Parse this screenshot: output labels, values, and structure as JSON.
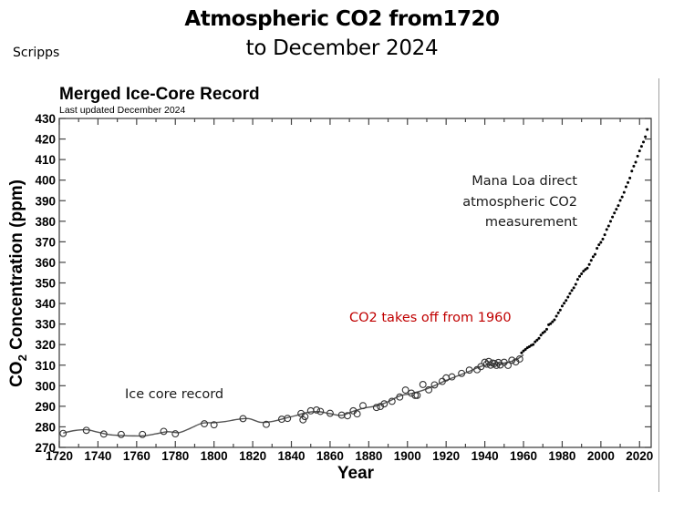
{
  "page": {
    "title_line1": "Atmospheric CO2 from1720",
    "title_line2": "to December 2024",
    "source_label": "Scripps"
  },
  "chart_data": {
    "type": "line",
    "title": "Merged Ice-Core Record",
    "subtitle": "Last updated December 2024",
    "xlabel": "Year",
    "ylabel_main": "CO",
    "ylabel_sub": "2",
    "ylabel_rest": " Concentration (ppm)",
    "xlim": [
      1720,
      2026
    ],
    "ylim": [
      270,
      430
    ],
    "x_ticks": [
      1720,
      1740,
      1760,
      1780,
      1800,
      1820,
      1840,
      1860,
      1880,
      1900,
      1920,
      1940,
      1960,
      1980,
      2000,
      2020
    ],
    "x_tick_labels": [
      "1720",
      "1740",
      "1760",
      "1780",
      "1800",
      "1820",
      "1840",
      "1860",
      "1880",
      "1900",
      "1920",
      "1940",
      "1960",
      "1980",
      "2000",
      "2020"
    ],
    "y_ticks": [
      270,
      280,
      290,
      300,
      310,
      320,
      330,
      340,
      350,
      360,
      370,
      380,
      390,
      400,
      410,
      420,
      430
    ],
    "y_tick_labels": [
      "270",
      "280",
      "290",
      "300",
      "310",
      "320",
      "330",
      "340",
      "350",
      "360",
      "370",
      "380",
      "390",
      "400",
      "410",
      "420",
      "430"
    ],
    "grid": false,
    "series": [
      {
        "name": "Ice core record (smoothed spline)",
        "style": "line",
        "x": [
          1722,
          1728,
          1734,
          1740,
          1746,
          1752,
          1758,
          1764,
          1770,
          1776,
          1782,
          1788,
          1794,
          1800,
          1806,
          1812,
          1818,
          1824,
          1830,
          1836,
          1842,
          1848,
          1854,
          1860,
          1866,
          1872,
          1878,
          1884,
          1890,
          1896,
          1902,
          1908,
          1914,
          1920,
          1926,
          1932,
          1938,
          1944,
          1950,
          1956,
          1960
        ],
        "y": [
          277.0,
          278.2,
          278.6,
          277.4,
          276.2,
          275.8,
          275.6,
          275.7,
          276.6,
          277.6,
          277.2,
          279.4,
          281.8,
          282.0,
          282.6,
          283.6,
          284.0,
          282.2,
          282.6,
          284.0,
          285.4,
          287.0,
          287.4,
          286.4,
          285.6,
          287.6,
          289.2,
          290.2,
          292.2,
          295.0,
          296.2,
          297.8,
          300.0,
          302.6,
          304.8,
          307.0,
          309.4,
          310.4,
          311.0,
          312.6,
          315.0
        ]
      },
      {
        "name": "Ice core samples",
        "style": "open-circles",
        "x": [
          1722,
          1734,
          1743,
          1752,
          1763,
          1774,
          1780,
          1795,
          1800,
          1815,
          1827,
          1835,
          1838,
          1845,
          1846,
          1847,
          1850,
          1853,
          1855,
          1860,
          1866,
          1869,
          1872,
          1874,
          1877,
          1884,
          1886,
          1888,
          1892,
          1896,
          1899,
          1902,
          1904,
          1905,
          1908,
          1911,
          1914,
          1918,
          1920,
          1923,
          1928,
          1932,
          1936,
          1938,
          1940,
          1941,
          1942,
          1943,
          1944,
          1945,
          1946,
          1947,
          1948,
          1950,
          1952,
          1954,
          1956,
          1958
        ],
        "y": [
          276.8,
          278.3,
          276.5,
          276.3,
          276.3,
          277.8,
          276.6,
          281.5,
          281.0,
          284.0,
          281.2,
          283.7,
          284.1,
          286.5,
          283.4,
          285.0,
          287.8,
          288.2,
          287.5,
          286.6,
          285.7,
          285.4,
          287.8,
          286.3,
          290.3,
          289.4,
          289.9,
          291.2,
          292.4,
          294.5,
          297.9,
          296.4,
          295.3,
          295.3,
          300.6,
          298.0,
          300.4,
          302.1,
          303.8,
          304.3,
          306.0,
          307.6,
          307.8,
          309.3,
          311.4,
          310.5,
          311.8,
          310.0,
          311.0,
          310.8,
          309.9,
          311.3,
          310.1,
          311.4,
          309.9,
          312.4,
          311.6,
          313.0
        ]
      },
      {
        "name": "Mauna Loa direct measurement (annual)",
        "style": "filled-dots",
        "x": [
          1959,
          1960,
          1961,
          1962,
          1963,
          1964,
          1965,
          1966,
          1967,
          1968,
          1969,
          1970,
          1971,
          1972,
          1973,
          1974,
          1975,
          1976,
          1977,
          1978,
          1979,
          1980,
          1981,
          1982,
          1983,
          1984,
          1985,
          1986,
          1987,
          1988,
          1989,
          1990,
          1991,
          1992,
          1993,
          1994,
          1995,
          1996,
          1997,
          1998,
          1999,
          2000,
          2001,
          2002,
          2003,
          2004,
          2005,
          2006,
          2007,
          2008,
          2009,
          2010,
          2011,
          2012,
          2013,
          2014,
          2015,
          2016,
          2017,
          2018,
          2019,
          2020,
          2021,
          2022,
          2023,
          2024
        ],
        "y": [
          315.98,
          316.91,
          317.64,
          318.45,
          318.99,
          319.62,
          320.04,
          321.37,
          322.18,
          323.05,
          324.62,
          325.68,
          326.32,
          327.46,
          329.68,
          330.19,
          331.13,
          332.03,
          333.84,
          335.41,
          336.84,
          338.76,
          340.12,
          341.48,
          343.15,
          344.87,
          346.35,
          347.61,
          349.31,
          351.69,
          353.2,
          354.45,
          355.7,
          356.54,
          357.21,
          358.96,
          360.97,
          362.74,
          363.88,
          366.84,
          368.54,
          369.71,
          371.32,
          373.45,
          375.98,
          377.7,
          379.98,
          382.09,
          384.02,
          385.83,
          387.64,
          390.1,
          391.85,
          394.06,
          396.74,
          398.81,
          401.01,
          404.41,
          406.76,
          408.72,
          411.65,
          414.21,
          416.41,
          418.53,
          421.08,
          424.61
        ]
      }
    ],
    "annotations": [
      {
        "text_lines": [
          "Mana Loa direct",
          "atmospheric CO2",
          "measurement"
        ],
        "color": "#1a1a1a"
      },
      {
        "text_lines": [
          "CO2 takes off from 1960"
        ],
        "color": "#c00000"
      },
      {
        "text_lines": [
          "Ice core record"
        ],
        "color": "#1a1a1a"
      }
    ],
    "legend": "none"
  }
}
